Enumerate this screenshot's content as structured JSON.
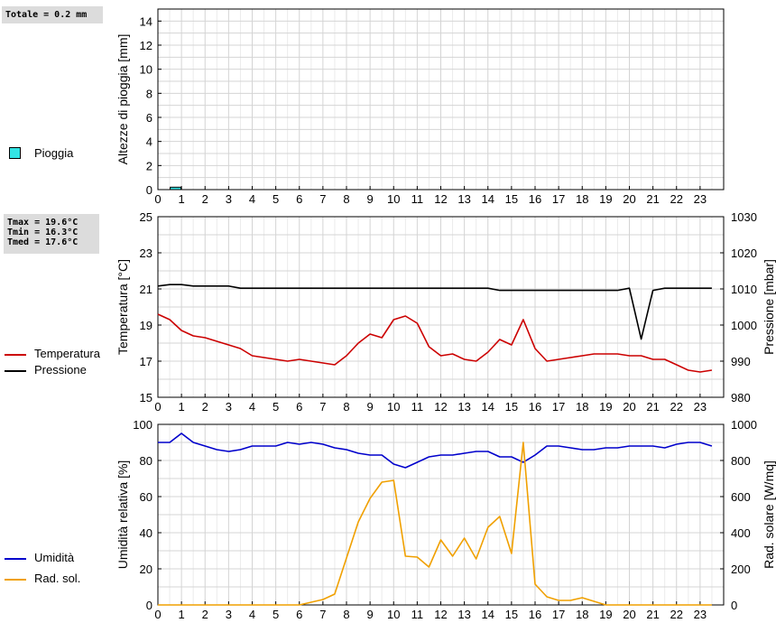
{
  "info": {
    "rain_total": "Totale = 0.2 mm",
    "tmax": "Tmax = 19.6°C",
    "tmin": "Tmin = 16.3°C",
    "tmed": "Tmed = 17.6°C"
  },
  "legends": {
    "rain": {
      "label": "Pioggia",
      "color": "#33e5e5"
    },
    "temp": {
      "label": "Temperatura",
      "color": "#cc0000"
    },
    "press": {
      "label": "Pressione",
      "color": "#000000"
    },
    "hum": {
      "label": "Umidità",
      "color": "#0000cc"
    },
    "rad": {
      "label": "Rad. sol.",
      "color": "#f0a000"
    }
  },
  "chart_data": [
    {
      "type": "bar",
      "ylabel": "Altezze di pioggia [mm]",
      "xlim": [
        0,
        24
      ],
      "ylim": [
        0,
        15
      ],
      "x_ticks": [
        0,
        1,
        2,
        3,
        4,
        5,
        6,
        7,
        8,
        9,
        10,
        11,
        12,
        13,
        14,
        15,
        16,
        17,
        18,
        19,
        20,
        21,
        22,
        23
      ],
      "y_ticks": [
        0,
        2,
        4,
        6,
        8,
        10,
        12,
        14
      ],
      "grid": true,
      "series": [
        {
          "name": "Pioggia",
          "color": "#33e5e5",
          "x": [
            0.75
          ],
          "values": [
            0.2
          ]
        }
      ]
    },
    {
      "type": "line",
      "ylabel": "Temperatura [°C]",
      "y2label": "Pressione [mbar]",
      "xlim": [
        0,
        24
      ],
      "ylim": [
        15,
        25
      ],
      "y2lim": [
        980,
        1030
      ],
      "x_ticks": [
        0,
        1,
        2,
        3,
        4,
        5,
        6,
        7,
        8,
        9,
        10,
        11,
        12,
        13,
        14,
        15,
        16,
        17,
        18,
        19,
        20,
        21,
        22,
        23
      ],
      "y_ticks": [
        15,
        17,
        19,
        21,
        23,
        25
      ],
      "y2_ticks": [
        980,
        990,
        1000,
        1010,
        1020,
        1030
      ],
      "grid": true,
      "series": [
        {
          "name": "Temperatura",
          "axis": "left",
          "color": "#cc0000",
          "x": [
            0,
            0.5,
            1,
            1.5,
            2,
            2.5,
            3,
            3.5,
            4,
            4.5,
            5,
            5.5,
            6,
            6.5,
            7,
            7.5,
            8,
            8.5,
            9,
            9.5,
            10,
            10.5,
            11,
            11.5,
            12,
            12.5,
            13,
            13.5,
            14,
            14.5,
            15,
            15.5,
            16,
            16.5,
            17,
            17.5,
            18,
            18.5,
            19,
            19.5,
            20,
            20.5,
            21,
            21.5,
            22,
            22.5,
            23,
            23.5
          ],
          "values": [
            19.6,
            19.3,
            18.7,
            18.4,
            18.3,
            18.1,
            17.9,
            17.7,
            17.3,
            17.2,
            17.1,
            17.0,
            17.1,
            17.0,
            16.9,
            16.8,
            17.3,
            18.0,
            18.5,
            18.3,
            19.3,
            19.5,
            19.1,
            17.8,
            17.3,
            17.4,
            17.1,
            17.0,
            17.5,
            18.2,
            17.9,
            19.3,
            17.7,
            17.0,
            17.1,
            17.2,
            17.3,
            17.4,
            17.4,
            17.4,
            17.3,
            17.3,
            17.1,
            17.1,
            16.8,
            16.5,
            16.4,
            16.5
          ]
        },
        {
          "name": "Pressione",
          "axis": "right",
          "color": "#000000",
          "x": [
            0,
            0.5,
            1,
            1.5,
            2,
            2.5,
            3,
            3.5,
            4,
            4.5,
            5,
            5.5,
            6,
            6.5,
            7,
            7.5,
            8,
            8.5,
            9,
            9.5,
            10,
            10.5,
            11,
            11.5,
            12,
            12.5,
            13,
            13.5,
            14,
            14.5,
            15,
            15.5,
            16,
            16.5,
            17,
            17.5,
            18,
            18.5,
            19,
            19.5,
            20,
            20.5,
            21,
            21.5,
            22,
            22.5,
            23,
            23.5
          ],
          "values": [
            1010.8,
            1011.2,
            1011.2,
            1010.8,
            1010.8,
            1010.8,
            1010.8,
            1010.2,
            1010.2,
            1010.2,
            1010.2,
            1010.2,
            1010.2,
            1010.2,
            1010.2,
            1010.2,
            1010.2,
            1010.2,
            1010.2,
            1010.2,
            1010.2,
            1010.2,
            1010.2,
            1010.2,
            1010.2,
            1010.2,
            1010.2,
            1010.2,
            1010.2,
            1009.6,
            1009.6,
            1009.6,
            1009.6,
            1009.6,
            1009.6,
            1009.6,
            1009.6,
            1009.6,
            1009.6,
            1009.6,
            1010.2,
            996.1,
            1009.6,
            1010.2,
            1010.2,
            1010.2,
            1010.2,
            1010.2
          ]
        }
      ]
    },
    {
      "type": "line",
      "ylabel": "Umidità relativa [%]",
      "y2label": "Rad. solare [W/mq]",
      "xlim": [
        0,
        24
      ],
      "ylim": [
        0,
        100
      ],
      "y2lim": [
        0,
        1000
      ],
      "x_ticks": [
        0,
        1,
        2,
        3,
        4,
        5,
        6,
        7,
        8,
        9,
        10,
        11,
        12,
        13,
        14,
        15,
        16,
        17,
        18,
        19,
        20,
        21,
        22,
        23
      ],
      "y_ticks": [
        0,
        20,
        40,
        60,
        80,
        100
      ],
      "y2_ticks": [
        0,
        200,
        400,
        600,
        800,
        1000
      ],
      "grid": true,
      "series": [
        {
          "name": "Umidità",
          "axis": "left",
          "color": "#0000cc",
          "x": [
            0,
            0.5,
            1,
            1.5,
            2,
            2.5,
            3,
            3.5,
            4,
            4.5,
            5,
            5.5,
            6,
            6.5,
            7,
            7.5,
            8,
            8.5,
            9,
            9.5,
            10,
            10.5,
            11,
            11.5,
            12,
            12.5,
            13,
            13.5,
            14,
            14.5,
            15,
            15.5,
            16,
            16.5,
            17,
            17.5,
            18,
            18.5,
            19,
            19.5,
            20,
            20.5,
            21,
            21.5,
            22,
            22.5,
            23,
            23.5
          ],
          "values": [
            90,
            90,
            95,
            90,
            88,
            86,
            85,
            86,
            88,
            88,
            88,
            90,
            89,
            90,
            89,
            87,
            86,
            84,
            83,
            83,
            78,
            76,
            79,
            82,
            83,
            83,
            84,
            85,
            85,
            82,
            82,
            79,
            83,
            88,
            88,
            87,
            86,
            86,
            87,
            87,
            88,
            88,
            88,
            87,
            89,
            90,
            90,
            88
          ]
        },
        {
          "name": "Rad. sol.",
          "axis": "right",
          "color": "#f0a000",
          "x": [
            0,
            0.5,
            1,
            1.5,
            2,
            2.5,
            3,
            3.5,
            4,
            4.5,
            5,
            5.5,
            6,
            6.5,
            7,
            7.5,
            8,
            8.5,
            9,
            9.5,
            10,
            10.5,
            11,
            11.5,
            12,
            12.5,
            13,
            13.5,
            14,
            14.5,
            15,
            15.5,
            16,
            16.5,
            17,
            17.5,
            18,
            18.5,
            19,
            19.5,
            20,
            20.5,
            21,
            21.5,
            22,
            22.5,
            23,
            23.5
          ],
          "values": [
            0,
            0,
            0,
            0,
            0,
            0,
            0,
            0,
            0,
            0,
            0,
            0,
            0,
            15,
            30,
            60,
            260,
            460,
            590,
            680,
            690,
            270,
            265,
            210,
            360,
            270,
            370,
            255,
            430,
            490,
            285,
            900,
            115,
            45,
            25,
            25,
            40,
            20,
            0,
            0,
            0,
            0,
            0,
            0,
            0,
            0,
            0,
            0
          ]
        }
      ]
    }
  ]
}
